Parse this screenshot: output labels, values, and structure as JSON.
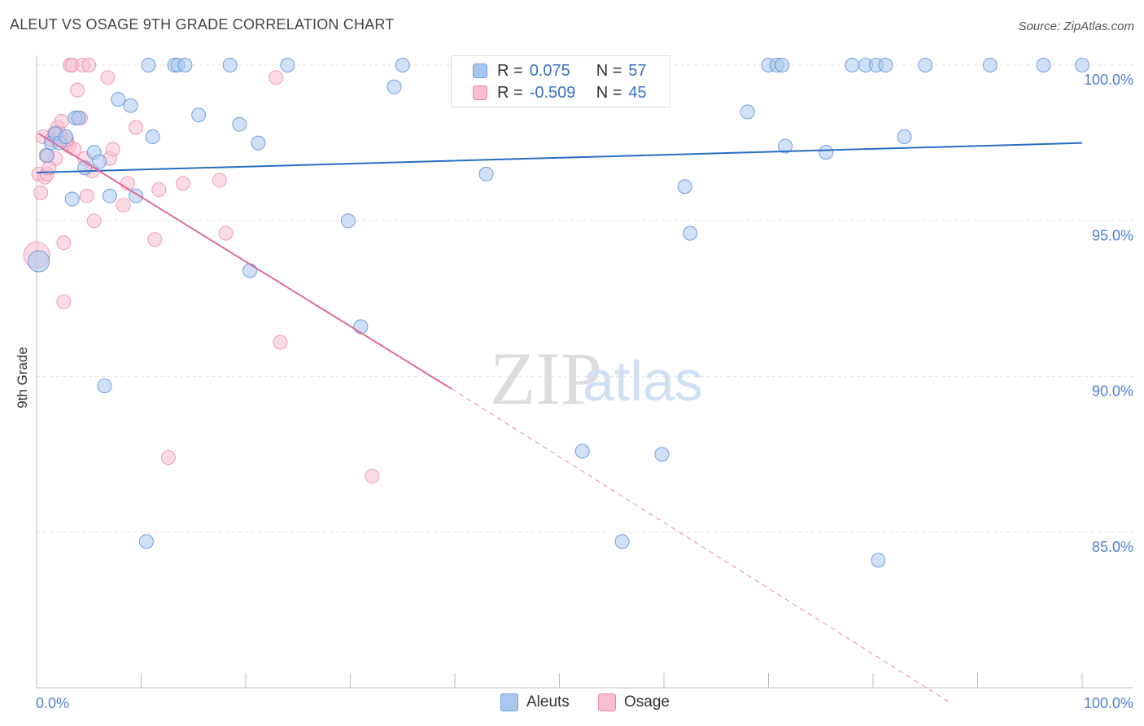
{
  "title": "ALEUT VS OSAGE 9TH GRADE CORRELATION CHART",
  "source": "Source: ZipAtlas.com",
  "watermark": {
    "zip": "ZIP",
    "atlas": "atlas"
  },
  "legend_stats": [
    {
      "r_label": "R =",
      "r_value": "0.075",
      "n_label": "N =",
      "n_value": "57",
      "color": "#a9c8f0",
      "border": "#6a9fe0"
    },
    {
      "r_label": "R =",
      "r_value": "-0.509",
      "n_label": "N =",
      "n_value": "45",
      "color": "#f7bfd0",
      "border": "#e88aa8"
    }
  ],
  "bottom_legend": [
    {
      "label": "Aleuts",
      "color": "#a9c8f0",
      "border": "#6a9fe0"
    },
    {
      "label": "Osage",
      "color": "#f7bfd0",
      "border": "#e88aa8"
    }
  ],
  "chart_data": {
    "type": "scatter",
    "title": "ALEUT VS OSAGE 9TH GRADE CORRELATION CHART",
    "xlabel": "",
    "ylabel": "9th Grade",
    "xlim": [
      0,
      100
    ],
    "ylim": [
      80.2,
      100.6
    ],
    "x_tick_labels": [
      "0.0%",
      "100.0%"
    ],
    "y_ticks": [
      85,
      90,
      95,
      100
    ],
    "y_tick_labels": [
      "85.0%",
      "90.0%",
      "95.0%",
      "100.0%"
    ],
    "grid": true,
    "series": [
      {
        "name": "Aleuts",
        "color": "#5b8fd6",
        "fill": "#a9c8f0",
        "trend": {
          "x": [
            0,
            100
          ],
          "y": [
            96.55,
            97.5
          ]
        },
        "points": [
          [
            0.2,
            93.7
          ],
          [
            1.0,
            97.1
          ],
          [
            1.4,
            97.5
          ],
          [
            1.8,
            97.8
          ],
          [
            2.2,
            97.5
          ],
          [
            2.8,
            97.7
          ],
          [
            3.4,
            95.7
          ],
          [
            3.7,
            98.3
          ],
          [
            4.0,
            98.3
          ],
          [
            4.6,
            96.7
          ],
          [
            5.5,
            97.2
          ],
          [
            6.0,
            96.9
          ],
          [
            7.0,
            95.8
          ],
          [
            7.8,
            98.9
          ],
          [
            9.0,
            98.7
          ],
          [
            9.5,
            95.8
          ],
          [
            10.7,
            100.0
          ],
          [
            11.1,
            97.7
          ],
          [
            13.2,
            100.0
          ],
          [
            13.5,
            100.0
          ],
          [
            14.2,
            100.0
          ],
          [
            15.5,
            98.4
          ],
          [
            18.5,
            100.0
          ],
          [
            19.4,
            98.1
          ],
          [
            20.4,
            93.4
          ],
          [
            21.2,
            97.5
          ],
          [
            24.0,
            100.0
          ],
          [
            29.8,
            95.0
          ],
          [
            31.0,
            91.6
          ],
          [
            34.2,
            99.3
          ],
          [
            35.0,
            100.0
          ],
          [
            43.0,
            96.5
          ],
          [
            47.0,
            100.0
          ],
          [
            52.2,
            87.6
          ],
          [
            55.0,
            100.0
          ],
          [
            56.0,
            84.7
          ],
          [
            59.8,
            87.5
          ],
          [
            62.0,
            96.1
          ],
          [
            62.5,
            94.6
          ],
          [
            68.0,
            98.5
          ],
          [
            70.0,
            100.0
          ],
          [
            70.8,
            100.0
          ],
          [
            71.3,
            100.0
          ],
          [
            71.6,
            97.4
          ],
          [
            75.5,
            97.2
          ],
          [
            78.0,
            100.0
          ],
          [
            79.3,
            100.0
          ],
          [
            80.3,
            100.0
          ],
          [
            80.5,
            84.1
          ],
          [
            81.2,
            100.0
          ],
          [
            83.0,
            97.7
          ],
          [
            85.0,
            100.0
          ],
          [
            91.2,
            100.0
          ],
          [
            96.3,
            100.0
          ],
          [
            100.0,
            100.0
          ],
          [
            6.5,
            89.7
          ],
          [
            10.5,
            84.7
          ]
        ]
      },
      {
        "name": "Osage",
        "color": "#e06a96",
        "fill": "#f7bfd0",
        "trend": {
          "x": [
            0.2,
            39.7
          ],
          "y": [
            97.8,
            89.6
          ]
        },
        "trend_extension": {
          "x": [
            39.7,
            87.5
          ],
          "y": [
            89.6,
            79.5
          ]
        },
        "points": [
          [
            0.0,
            93.9
          ],
          [
            0.2,
            96.5
          ],
          [
            0.4,
            95.9
          ],
          [
            0.6,
            97.7
          ],
          [
            0.8,
            96.4
          ],
          [
            1.0,
            96.5
          ],
          [
            1.4,
            97.6
          ],
          [
            1.8,
            97.0
          ],
          [
            2.0,
            98.0
          ],
          [
            2.2,
            97.8
          ],
          [
            2.4,
            98.2
          ],
          [
            2.6,
            94.3
          ],
          [
            2.6,
            92.4
          ],
          [
            2.9,
            97.5
          ],
          [
            3.1,
            97.4
          ],
          [
            3.2,
            100.0
          ],
          [
            3.4,
            100.0
          ],
          [
            3.6,
            97.3
          ],
          [
            3.9,
            99.2
          ],
          [
            4.2,
            98.3
          ],
          [
            4.4,
            100.0
          ],
          [
            4.6,
            97.0
          ],
          [
            4.8,
            95.8
          ],
          [
            5.0,
            100.0
          ],
          [
            5.5,
            95.0
          ],
          [
            5.3,
            96.6
          ],
          [
            6.8,
            99.6
          ],
          [
            7.0,
            97.0
          ],
          [
            7.3,
            97.3
          ],
          [
            8.3,
            95.5
          ],
          [
            8.7,
            96.2
          ],
          [
            9.5,
            98.0
          ],
          [
            11.3,
            94.4
          ],
          [
            11.7,
            96.0
          ],
          [
            12.6,
            87.4
          ],
          [
            14.0,
            96.2
          ],
          [
            17.5,
            96.3
          ],
          [
            18.1,
            94.6
          ],
          [
            22.9,
            99.6
          ],
          [
            23.3,
            91.1
          ],
          [
            32.1,
            86.8
          ],
          [
            1.7,
            97.8
          ],
          [
            2.9,
            97.6
          ],
          [
            1.2,
            96.7
          ],
          [
            0.9,
            97.1
          ]
        ]
      }
    ]
  }
}
